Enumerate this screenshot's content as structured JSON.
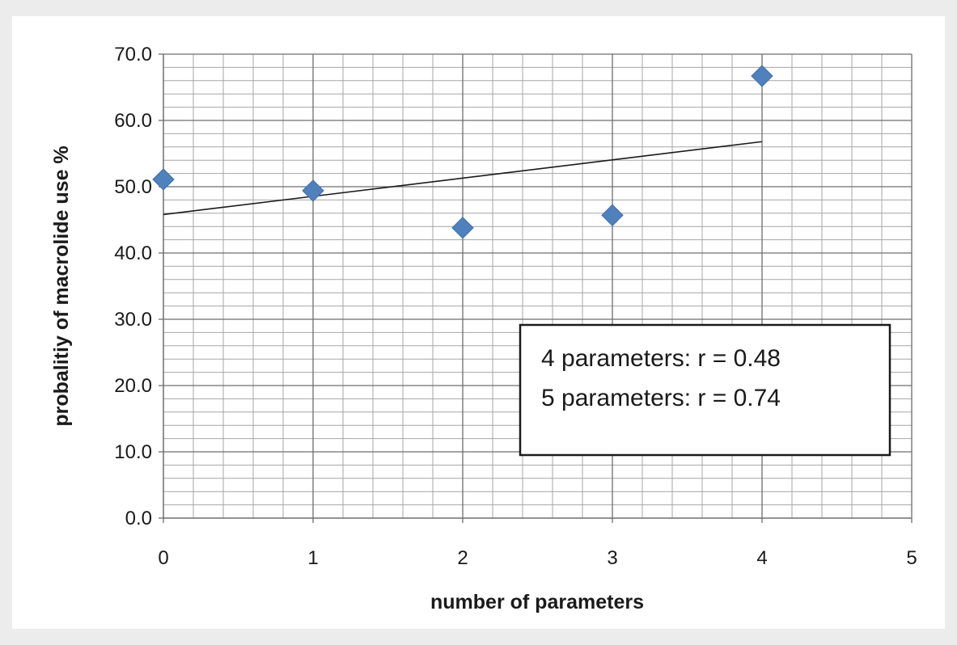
{
  "chart_data": {
    "type": "scatter",
    "title": "",
    "xlabel": "number of parameters",
    "ylabel": "probalitiy of macrolide use %",
    "xlim": [
      0,
      5
    ],
    "ylim": [
      0,
      70
    ],
    "x_ticks": [
      "0",
      "1",
      "2",
      "3",
      "4",
      "5"
    ],
    "y_ticks": [
      "0.0",
      "10.0",
      "20.0",
      "30.0",
      "40.0",
      "50.0",
      "60.0",
      "70.0"
    ],
    "grid": true,
    "series": [
      {
        "x": [
          0,
          1,
          2,
          3,
          4
        ],
        "y": [
          51.1,
          49.4,
          43.8,
          45.7,
          66.7
        ],
        "marker": "diamond",
        "color": "#4f81bd"
      }
    ],
    "trendline": {
      "x": [
        0,
        4
      ],
      "y": [
        45.8,
        56.8
      ],
      "color": "#1a1a1a"
    },
    "annotation": {
      "lines": [
        "4 parameters: r = 0.48",
        "5 parameters: r = 0.74"
      ],
      "placement": "bottom-right"
    }
  }
}
